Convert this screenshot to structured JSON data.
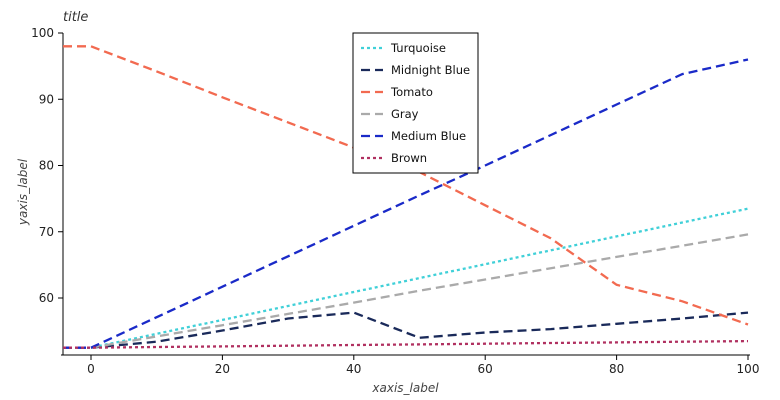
{
  "chart_data": {
    "type": "line",
    "title": "title",
    "xlabel": "xaxis_label",
    "ylabel": "yaxis_label",
    "xlim": [
      0,
      100
    ],
    "ylim": [
      52,
      100
    ],
    "xticks": [
      0,
      20,
      40,
      60,
      80,
      100
    ],
    "yticks": [
      60,
      70,
      80,
      90,
      100
    ],
    "grid": false,
    "legend_placement": "top-center",
    "x": [
      0,
      10,
      20,
      30,
      40,
      50,
      60,
      70,
      80,
      90,
      100
    ],
    "series": [
      {
        "name": "Turquoise",
        "color": "#40d0d8",
        "dash": "3,3",
        "values": [
          52.5,
          54.6,
          56.7,
          58.8,
          60.9,
          63.0,
          65.1,
          67.2,
          69.3,
          71.4,
          73.5
        ]
      },
      {
        "name": "Midnight Blue",
        "color": "#1a2a5a",
        "dash": "9,5",
        "values": [
          52.5,
          53.4,
          55.1,
          56.9,
          57.8,
          54.0,
          54.8,
          55.3,
          56.1,
          56.9,
          57.8
        ]
      },
      {
        "name": "Tomato",
        "color": "#f26a50",
        "dash": "9,5",
        "values": [
          98.0,
          94.2,
          90.3,
          86.5,
          82.7,
          79.0,
          74.0,
          69.0,
          62.0,
          59.5,
          56.0
        ]
      },
      {
        "name": "Gray",
        "color": "#aaaaaa",
        "dash": "9,5",
        "values": [
          52.5,
          54.2,
          55.9,
          57.6,
          59.3,
          61.1,
          62.8,
          64.5,
          66.2,
          67.9,
          69.6
        ]
      },
      {
        "name": "Medium Blue",
        "color": "#1a2ac8",
        "dash": "9,5",
        "values": [
          52.5,
          57.1,
          61.7,
          66.3,
          70.9,
          75.5,
          80.0,
          84.6,
          89.2,
          93.8,
          96.0
        ]
      },
      {
        "name": "Brown",
        "color": "#b03060",
        "dash": "3,3",
        "values": [
          52.5,
          52.6,
          52.7,
          52.8,
          52.9,
          53.0,
          53.1,
          53.2,
          53.3,
          53.4,
          53.5
        ]
      }
    ]
  }
}
